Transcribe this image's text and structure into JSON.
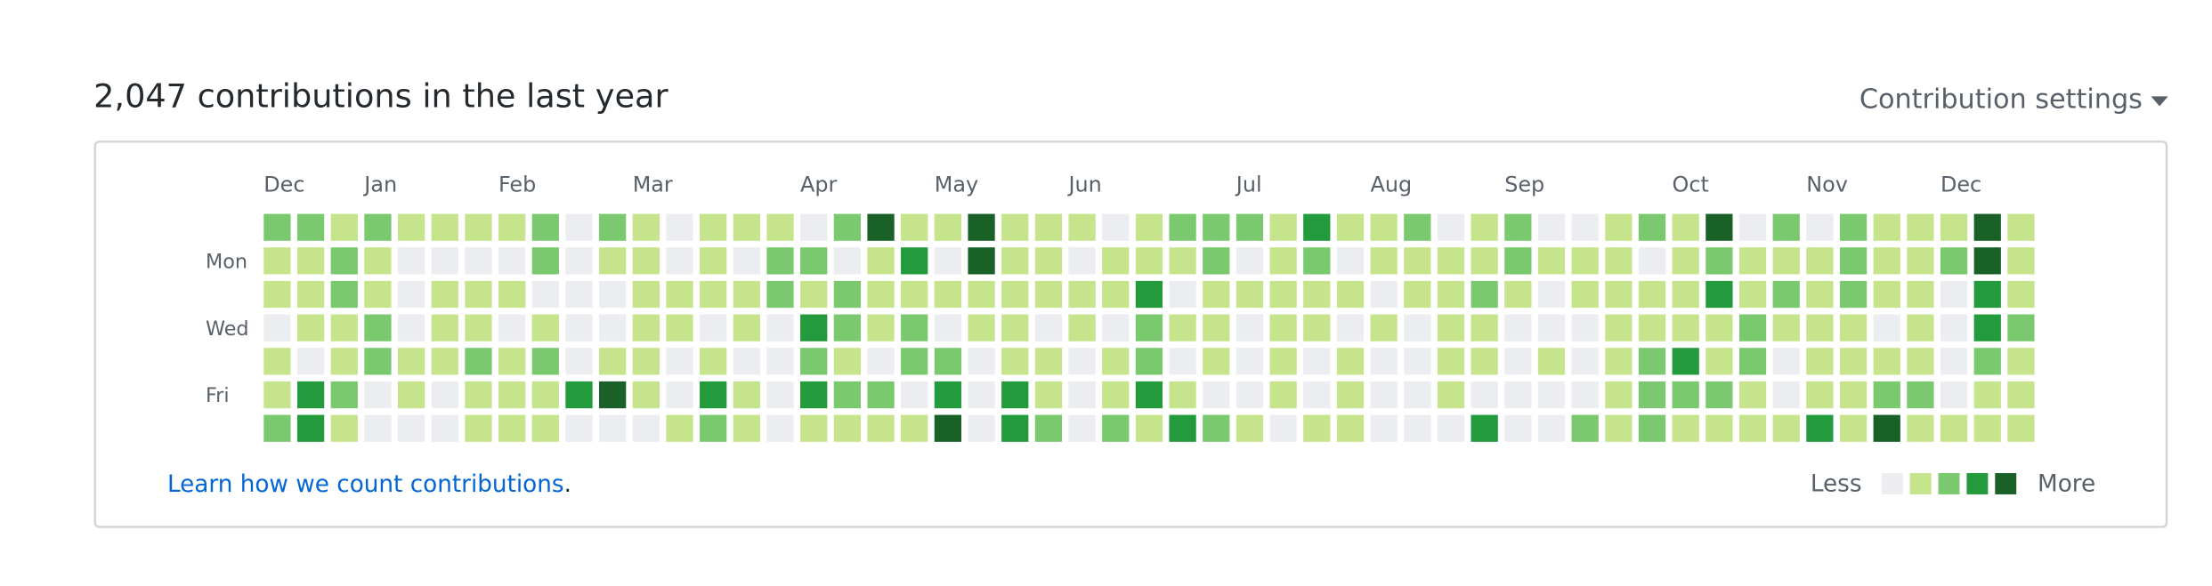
{
  "header": {
    "title": "2,047 contributions in the last year",
    "settings": "Contribution settings"
  },
  "graph": {
    "months": [
      "Dec",
      null,
      null,
      "Jan",
      null,
      null,
      null,
      "Feb",
      null,
      null,
      null,
      "Mar",
      null,
      null,
      null,
      null,
      "Apr",
      null,
      null,
      null,
      "May",
      null,
      null,
      null,
      "Jun",
      null,
      null,
      null,
      null,
      "Jul",
      null,
      null,
      null,
      "Aug",
      null,
      null,
      null,
      "Sep",
      null,
      null,
      null,
      null,
      "Oct",
      null,
      null,
      null,
      "Nov",
      null,
      null,
      null,
      "Dec",
      null,
      null
    ],
    "days": [
      null,
      "Mon",
      null,
      "Wed",
      null,
      "Fri",
      null
    ],
    "levels": [
      [
        2,
        2,
        1,
        2,
        1,
        1,
        1,
        1,
        2,
        0,
        2,
        1,
        0,
        1,
        1,
        1,
        0,
        2,
        4,
        1,
        1,
        4,
        1,
        1,
        1,
        0,
        1,
        2,
        2,
        2,
        1,
        3,
        1,
        1,
        2,
        0,
        1,
        2,
        0,
        0,
        1,
        2,
        1,
        4,
        0,
        2,
        0,
        2,
        1,
        1,
        1,
        4,
        1
      ],
      [
        1,
        1,
        2,
        1,
        0,
        0,
        0,
        0,
        2,
        0,
        1,
        1,
        0,
        1,
        0,
        2,
        2,
        0,
        1,
        3,
        0,
        4,
        1,
        1,
        0,
        1,
        1,
        1,
        2,
        0,
        1,
        2,
        0,
        1,
        1,
        1,
        1,
        2,
        1,
        1,
        1,
        0,
        1,
        2,
        1,
        1,
        1,
        2,
        1,
        1,
        2,
        4,
        1
      ],
      [
        1,
        1,
        2,
        1,
        0,
        1,
        1,
        1,
        0,
        0,
        0,
        1,
        1,
        1,
        1,
        2,
        1,
        2,
        1,
        1,
        1,
        1,
        1,
        1,
        1,
        1,
        3,
        0,
        1,
        1,
        1,
        1,
        1,
        0,
        1,
        1,
        2,
        1,
        0,
        1,
        1,
        1,
        1,
        3,
        1,
        2,
        1,
        2,
        1,
        1,
        0,
        3,
        1
      ],
      [
        0,
        1,
        1,
        2,
        0,
        1,
        1,
        0,
        1,
        0,
        0,
        1,
        1,
        0,
        1,
        0,
        3,
        2,
        1,
        2,
        0,
        1,
        1,
        0,
        1,
        0,
        2,
        1,
        1,
        0,
        1,
        1,
        0,
        1,
        0,
        1,
        1,
        0,
        0,
        0,
        1,
        1,
        1,
        1,
        2,
        1,
        1,
        1,
        0,
        1,
        0,
        3,
        2
      ],
      [
        1,
        0,
        1,
        2,
        1,
        1,
        2,
        1,
        2,
        0,
        1,
        1,
        0,
        1,
        0,
        0,
        2,
        1,
        0,
        2,
        2,
        0,
        1,
        1,
        0,
        1,
        2,
        0,
        1,
        0,
        1,
        0,
        1,
        0,
        0,
        1,
        1,
        0,
        1,
        0,
        1,
        2,
        3,
        1,
        2,
        0,
        1,
        1,
        1,
        1,
        0,
        2,
        1
      ],
      [
        1,
        3,
        2,
        0,
        1,
        0,
        1,
        1,
        1,
        3,
        4,
        1,
        0,
        3,
        1,
        0,
        3,
        2,
        2,
        0,
        3,
        0,
        3,
        1,
        0,
        1,
        3,
        1,
        0,
        0,
        1,
        0,
        1,
        0,
        0,
        1,
        0,
        0,
        0,
        0,
        1,
        2,
        2,
        2,
        1,
        0,
        1,
        1,
        2,
        2,
        0,
        1,
        1
      ],
      [
        2,
        3,
        1,
        0,
        0,
        0,
        1,
        1,
        1,
        0,
        0,
        0,
        1,
        2,
        1,
        0,
        1,
        1,
        1,
        1,
        4,
        0,
        3,
        2,
        0,
        2,
        1,
        3,
        2,
        1,
        0,
        1,
        1,
        0,
        0,
        0,
        3,
        0,
        0,
        2,
        1,
        2,
        1,
        1,
        1,
        1,
        3,
        1,
        4,
        1,
        1,
        1,
        1
      ]
    ],
    "palette": [
      "#ebedf0",
      "#c6e48b",
      "#7bc96f",
      "#239a3b",
      "#196127"
    ]
  },
  "footer": {
    "link": "Learn how we count contributions",
    "suffix": ".",
    "less": "Less",
    "more": "More"
  }
}
